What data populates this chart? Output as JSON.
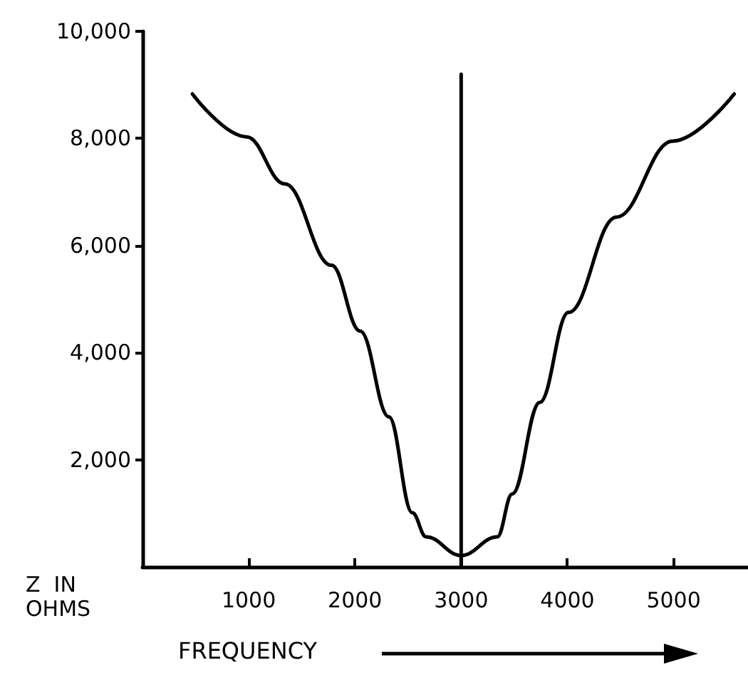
{
  "chart_data": {
    "type": "line",
    "xlabel": "FREQUENCY",
    "ylabel": "Z  IN\nOHMS",
    "marker": "none",
    "xlim": [
      0,
      5700
    ],
    "xticks": [
      1000,
      2000,
      3000,
      4000,
      5000
    ],
    "ylim": [
      0,
      10000
    ],
    "yticks": [
      {
        "value": 2000,
        "label": "2,000"
      },
      {
        "value": 4000,
        "label": "4,000"
      },
      {
        "value": 6000,
        "label": "6,000"
      },
      {
        "value": 8000,
        "label": "8,000"
      },
      {
        "value": 10000,
        "label": "10,000"
      }
    ],
    "series": [
      {
        "color": "#000000",
        "x": [
          470,
          980,
          1340,
          1780,
          2050,
          2320,
          2540,
          2670,
          3000,
          3340,
          3480,
          3740,
          4010,
          4460,
          4990,
          5570
        ],
        "values": [
          8830,
          8030,
          7150,
          5630,
          4400,
          2800,
          1010,
          560,
          210,
          560,
          1360,
          3070,
          4750,
          6530,
          7950,
          8830
        ]
      },
      {
        "color": "#000000",
        "x": [
          3000,
          3000
        ],
        "values": [
          0,
          9200
        ]
      }
    ]
  }
}
